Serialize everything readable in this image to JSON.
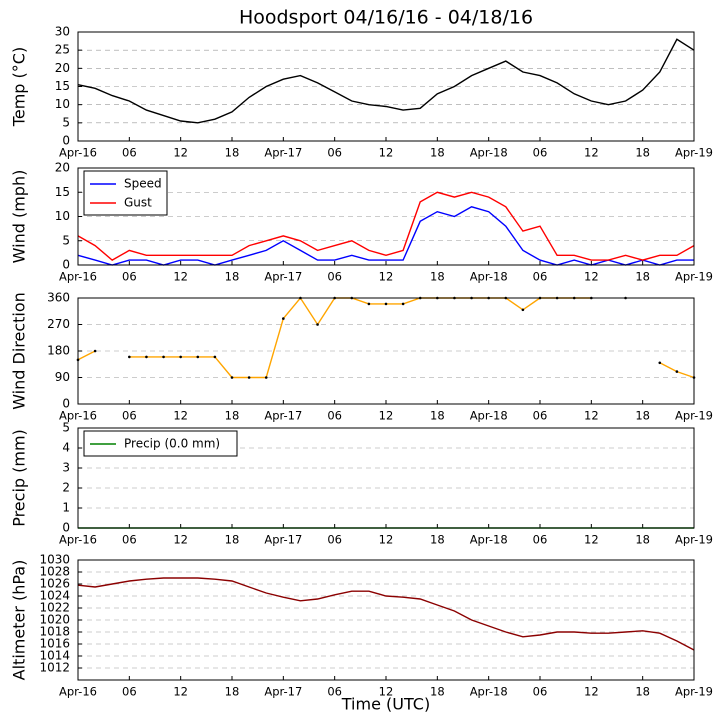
{
  "chart_data": [
    {
      "type": "line",
      "title": "Hoodsport 04/16/16 - 04/18/16",
      "ylabel": "Temp (°C)",
      "x": [
        0,
        2,
        4,
        6,
        8,
        10,
        12,
        14,
        16,
        18,
        20,
        22,
        24,
        26,
        28,
        30,
        32,
        34,
        36,
        38,
        40,
        42,
        44,
        46,
        48,
        50,
        52,
        54,
        56,
        58,
        60,
        62,
        64,
        66,
        68,
        70,
        72
      ],
      "xlim": [
        0,
        72
      ],
      "xticks": [
        {
          "value": 0,
          "label": "Apr-16"
        },
        {
          "value": 6,
          "label": "06"
        },
        {
          "value": 12,
          "label": "12"
        },
        {
          "value": 18,
          "label": "18"
        },
        {
          "value": 24,
          "label": "Apr-17"
        },
        {
          "value": 30,
          "label": "06"
        },
        {
          "value": 36,
          "label": "12"
        },
        {
          "value": 42,
          "label": "18"
        },
        {
          "value": 48,
          "label": "Apr-18"
        },
        {
          "value": 54,
          "label": "06"
        },
        {
          "value": 60,
          "label": "12"
        },
        {
          "value": 66,
          "label": "18"
        },
        {
          "value": 72,
          "label": "Apr-19"
        }
      ],
      "ylim": [
        0,
        30
      ],
      "yticks": [
        0,
        5,
        10,
        15,
        20,
        25,
        30
      ],
      "grid": true,
      "series": [
        {
          "color": "#000000",
          "values": [
            15.5,
            14.5,
            12.5,
            11,
            8.5,
            7,
            5.5,
            5,
            6,
            8,
            12,
            15,
            17,
            18,
            16,
            13.5,
            11,
            10,
            9.5,
            8.5,
            9,
            13,
            15,
            18,
            20,
            22,
            19,
            18,
            16,
            13,
            11,
            10,
            11,
            14,
            19,
            28,
            25
          ]
        }
      ]
    },
    {
      "type": "line",
      "ylabel": "Wind (mph)",
      "x": [
        0,
        2,
        4,
        6,
        8,
        10,
        12,
        14,
        16,
        18,
        20,
        22,
        24,
        26,
        28,
        30,
        32,
        34,
        36,
        38,
        40,
        42,
        44,
        46,
        48,
        50,
        52,
        54,
        56,
        58,
        60,
        62,
        64,
        66,
        68,
        70,
        72
      ],
      "xlim": [
        0,
        72
      ],
      "xticks": [
        {
          "value": 0,
          "label": "Apr-16"
        },
        {
          "value": 6,
          "label": "06"
        },
        {
          "value": 12,
          "label": "12"
        },
        {
          "value": 18,
          "label": "18"
        },
        {
          "value": 24,
          "label": "Apr-17"
        },
        {
          "value": 30,
          "label": "06"
        },
        {
          "value": 36,
          "label": "12"
        },
        {
          "value": 42,
          "label": "18"
        },
        {
          "value": 48,
          "label": "Apr-18"
        },
        {
          "value": 54,
          "label": "06"
        },
        {
          "value": 60,
          "label": "12"
        },
        {
          "value": 66,
          "label": "18"
        },
        {
          "value": 72,
          "label": "Apr-19"
        }
      ],
      "ylim": [
        0,
        20
      ],
      "yticks": [
        0,
        5,
        10,
        15,
        20
      ],
      "grid": true,
      "legend": "upper left",
      "series": [
        {
          "name": "Speed",
          "color": "#0000ff",
          "values": [
            2,
            1,
            0,
            1,
            1,
            0,
            1,
            1,
            0,
            1,
            2,
            3,
            5,
            3,
            1,
            1,
            2,
            1,
            1,
            1,
            9,
            11,
            10,
            12,
            11,
            8,
            3,
            1,
            0,
            1,
            0,
            1,
            0,
            1,
            0,
            1,
            1
          ]
        },
        {
          "name": "Gust",
          "color": "#ff0000",
          "values": [
            6,
            4,
            1,
            3,
            2,
            2,
            2,
            2,
            2,
            2,
            4,
            5,
            6,
            5,
            3,
            4,
            5,
            3,
            2,
            3,
            13,
            15,
            14,
            15,
            14,
            12,
            7,
            8,
            2,
            2,
            1,
            1,
            2,
            1,
            2,
            2,
            4
          ]
        }
      ]
    },
    {
      "type": "line",
      "ylabel": "Wind Direction",
      "markers": true,
      "x": [
        0,
        2,
        4,
        6,
        8,
        10,
        12,
        14,
        16,
        18,
        20,
        22,
        24,
        26,
        28,
        30,
        32,
        34,
        36,
        38,
        40,
        42,
        44,
        46,
        48,
        50,
        52,
        54,
        56,
        58,
        60,
        62,
        64,
        66,
        68,
        70,
        72
      ],
      "xlim": [
        0,
        72
      ],
      "xticks": [
        {
          "value": 0,
          "label": "Apr-16"
        },
        {
          "value": 6,
          "label": "06"
        },
        {
          "value": 12,
          "label": "12"
        },
        {
          "value": 18,
          "label": "18"
        },
        {
          "value": 24,
          "label": "Apr-17"
        },
        {
          "value": 30,
          "label": "06"
        },
        {
          "value": 36,
          "label": "12"
        },
        {
          "value": 42,
          "label": "18"
        },
        {
          "value": 48,
          "label": "Apr-18"
        },
        {
          "value": 54,
          "label": "06"
        },
        {
          "value": 60,
          "label": "12"
        },
        {
          "value": 66,
          "label": "18"
        },
        {
          "value": 72,
          "label": "Apr-19"
        }
      ],
      "ylim": [
        0,
        360
      ],
      "yticks": [
        0,
        90,
        180,
        270,
        360
      ],
      "grid": true,
      "series": [
        {
          "color": "#ffa500",
          "values": [
            150,
            180,
            null,
            160,
            160,
            160,
            160,
            160,
            160,
            90,
            90,
            90,
            290,
            360,
            270,
            360,
            360,
            340,
            340,
            340,
            360,
            360,
            360,
            360,
            360,
            360,
            320,
            360,
            360,
            360,
            360,
            null,
            360,
            null,
            140,
            110,
            90
          ]
        }
      ]
    },
    {
      "type": "line",
      "ylabel": "Precip (mm)",
      "x": [
        0,
        2,
        4,
        6,
        8,
        10,
        12,
        14,
        16,
        18,
        20,
        22,
        24,
        26,
        28,
        30,
        32,
        34,
        36,
        38,
        40,
        42,
        44,
        46,
        48,
        50,
        52,
        54,
        56,
        58,
        60,
        62,
        64,
        66,
        68,
        70,
        72
      ],
      "xlim": [
        0,
        72
      ],
      "xticks": [
        {
          "value": 0,
          "label": "Apr-16"
        },
        {
          "value": 6,
          "label": "06"
        },
        {
          "value": 12,
          "label": "12"
        },
        {
          "value": 18,
          "label": "18"
        },
        {
          "value": 24,
          "label": "Apr-17"
        },
        {
          "value": 30,
          "label": "06"
        },
        {
          "value": 36,
          "label": "12"
        },
        {
          "value": 42,
          "label": "18"
        },
        {
          "value": 48,
          "label": "Apr-18"
        },
        {
          "value": 54,
          "label": "06"
        },
        {
          "value": 60,
          "label": "12"
        },
        {
          "value": 66,
          "label": "18"
        },
        {
          "value": 72,
          "label": "Apr-19"
        }
      ],
      "ylim": [
        0,
        5
      ],
      "yticks": [
        0,
        1,
        2,
        3,
        4,
        5
      ],
      "grid": true,
      "legend": "upper left",
      "series": [
        {
          "name": "Precip (0.0 mm)",
          "color": "#008000",
          "values": [
            0,
            0,
            0,
            0,
            0,
            0,
            0,
            0,
            0,
            0,
            0,
            0,
            0,
            0,
            0,
            0,
            0,
            0,
            0,
            0,
            0,
            0,
            0,
            0,
            0,
            0,
            0,
            0,
            0,
            0,
            0,
            0,
            0,
            0,
            0,
            0,
            0
          ]
        }
      ]
    },
    {
      "type": "line",
      "ylabel": "Altimeter (hPa)",
      "xlabel": "Time (UTC)",
      "x": [
        0,
        2,
        4,
        6,
        8,
        10,
        12,
        14,
        16,
        18,
        20,
        22,
        24,
        26,
        28,
        30,
        32,
        34,
        36,
        38,
        40,
        42,
        44,
        46,
        48,
        50,
        52,
        54,
        56,
        58,
        60,
        62,
        64,
        66,
        68,
        70,
        72
      ],
      "xlim": [
        0,
        72
      ],
      "xticks": [
        {
          "value": 0,
          "label": "Apr-16"
        },
        {
          "value": 6,
          "label": "06"
        },
        {
          "value": 12,
          "label": "12"
        },
        {
          "value": 18,
          "label": "18"
        },
        {
          "value": 24,
          "label": "Apr-17"
        },
        {
          "value": 30,
          "label": "06"
        },
        {
          "value": 36,
          "label": "12"
        },
        {
          "value": 42,
          "label": "18"
        },
        {
          "value": 48,
          "label": "Apr-18"
        },
        {
          "value": 54,
          "label": "06"
        },
        {
          "value": 60,
          "label": "12"
        },
        {
          "value": 66,
          "label": "18"
        },
        {
          "value": 72,
          "label": "Apr-19"
        }
      ],
      "ylim": [
        1010,
        1030
      ],
      "yticks": [
        1012,
        1014,
        1016,
        1018,
        1020,
        1022,
        1024,
        1026,
        1028,
        1030
      ],
      "grid": true,
      "series": [
        {
          "color": "#8b0000",
          "values": [
            1025.8,
            1025.5,
            1026,
            1026.5,
            1026.8,
            1027,
            1027,
            1027,
            1026.8,
            1026.5,
            1025.5,
            1024.5,
            1023.8,
            1023.2,
            1023.5,
            1024.2,
            1024.8,
            1024.8,
            1024,
            1023.8,
            1023.5,
            1022.5,
            1021.5,
            1020,
            1019,
            1018,
            1017.2,
            1017.5,
            1018,
            1018,
            1017.8,
            1017.8,
            1018,
            1018.2,
            1017.8,
            1016.5,
            1015
          ]
        }
      ]
    }
  ]
}
